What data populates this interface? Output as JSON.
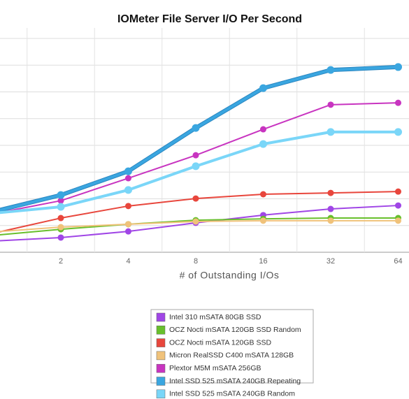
{
  "chart_data": {
    "type": "line",
    "title": "IOMeter File Server I/O Per Second",
    "x_label": "# of Outstanding I/Os",
    "categories": [
      null,
      "2",
      "4",
      "8",
      "16",
      "32",
      "64"
    ],
    "ylim": [
      0,
      8
    ],
    "ygrid": [
      0,
      1,
      2,
      3,
      4,
      5,
      6,
      7,
      8
    ],
    "grid": true,
    "series": [
      {
        "name": "Intel 310 mSATA 80GB SSD",
        "color": "#a046e6",
        "values": [
          0.42,
          0.55,
          0.78,
          1.1,
          1.39,
          1.62,
          1.75
        ]
      },
      {
        "name": "OCZ Nocti mSATA 120GB SSD Random",
        "color": "#68bf2c",
        "values": [
          0.63,
          0.86,
          1.05,
          1.2,
          1.25,
          1.28,
          1.28
        ]
      },
      {
        "name": "OCZ Nocti mSATA 120GB SSD",
        "color": "#e8463c",
        "values": [
          0.71,
          1.28,
          1.73,
          2.01,
          2.17,
          2.22,
          2.27
        ]
      },
      {
        "name": "Micron RealSSD C400 mSATA 128GB",
        "color": "#f0c27a",
        "values": [
          0.76,
          0.94,
          1.05,
          1.15,
          1.18,
          1.18,
          1.18
        ]
      },
      {
        "name": "Plextor M5M mSATA 256GB",
        "color": "#c834c0",
        "values": [
          1.44,
          1.93,
          2.77,
          3.63,
          4.6,
          5.52,
          5.59
        ]
      },
      {
        "name": "Intel SSD 525 mSATA 240GB Repeating",
        "color": "#3aa6e0",
        "values": [
          1.52,
          2.14,
          3.03,
          4.65,
          6.14,
          6.82,
          6.93
        ]
      },
      {
        "name": "Intel SSD 525 mSATA 240GB Random",
        "color": "#7ad6f8",
        "values": [
          1.46,
          1.7,
          2.33,
          3.22,
          4.05,
          4.5,
          4.5
        ]
      }
    ]
  }
}
